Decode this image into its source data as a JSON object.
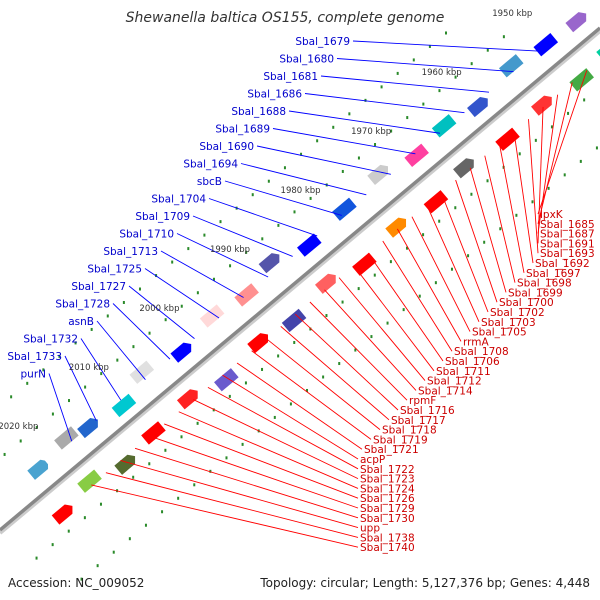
{
  "title": "Shewanella baltica OS155, complete genome",
  "accession": "Accession: NC_009052",
  "summary": "Topology: circular; Length: 5,127,376 bp; Genes: 4,448",
  "colors": {
    "forward": "#0000ff",
    "reverse": "#ff0000",
    "backbone": "#888888",
    "tick": "#2a8a2a",
    "label_forward": "#0000cc",
    "label_reverse": "#cc0000"
  },
  "ticks": [
    "1950 kbp",
    "1960 kbp",
    "1970 kbp",
    "1980 kbp",
    "1990 kbp",
    "2000 kbp",
    "2010 kbp",
    "2020 kbp"
  ],
  "forward_labels": [
    "Sbal_1679",
    "Sbal_1680",
    "Sbal_1681",
    "Sbal_1686",
    "Sbal_1688",
    "Sbal_1689",
    "Sbal_1690",
    "Sbal_1694",
    "sbcB",
    "Sbal_1704",
    "Sbal_1709",
    "Sbal_1710",
    "Sbal_1713",
    "Sbal_1725",
    "Sbal_1727",
    "Sbal_1728",
    "asnB",
    "Sbal_1732",
    "Sbal_1733",
    "purN"
  ],
  "reverse_labels": [
    "lpxK",
    "Sbal_1685",
    "Sbal_1687",
    "Sbal_1691",
    "Sbal_1693",
    "Sbal_1692",
    "Sbal_1697",
    "Sbal_1698",
    "Sbal_1699",
    "Sbal_1700",
    "Sbal_1702",
    "Sbal_1703",
    "Sbal_1705",
    "rrmA",
    "Sbal_1708",
    "Sbal_1706",
    "Sbal_1711",
    "Sbal_1712",
    "Sbal_1714",
    "rpmF",
    "Sbal_1716",
    "Sbal_1717",
    "Sbal_1718",
    "Sbal_1719",
    "Sbal_1721",
    "acpP",
    "Sbal_1722",
    "Sbal_1723",
    "Sbal_1724",
    "Sbal_1726",
    "Sbal_1729",
    "Sbal_1730",
    "upp",
    "Sbal_1738",
    "Sbal_1740"
  ]
}
